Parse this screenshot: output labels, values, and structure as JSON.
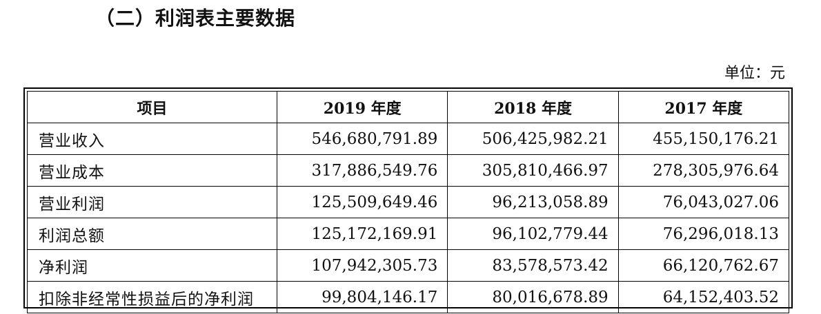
{
  "section_title": "（二）利润表主要数据",
  "unit_note": "单位：元",
  "table": {
    "headers": [
      "项目",
      "2019 年度",
      "2018 年度",
      "2017 年度"
    ],
    "rows": [
      {
        "label": "营业收入",
        "values": [
          "546,680,791.89",
          "506,425,982.21",
          "455,150,176.21"
        ]
      },
      {
        "label": "营业成本",
        "values": [
          "317,886,549.76",
          "305,810,466.97",
          "278,305,976.64"
        ]
      },
      {
        "label": "营业利润",
        "values": [
          "125,509,649.46",
          "96,213,058.89",
          "76,043,027.06"
        ]
      },
      {
        "label": "利润总额",
        "values": [
          "125,172,169.91",
          "96,102,779.44",
          "76,296,018.13"
        ]
      },
      {
        "label": "净利润",
        "values": [
          "107,942,305.73",
          "83,578,573.42",
          "66,120,762.67"
        ]
      },
      {
        "label": "扣除非经常性损益后的净利润",
        "values": [
          "99,804,146.17",
          "80,016,678.89",
          "64,152,403.52"
        ]
      }
    ]
  }
}
